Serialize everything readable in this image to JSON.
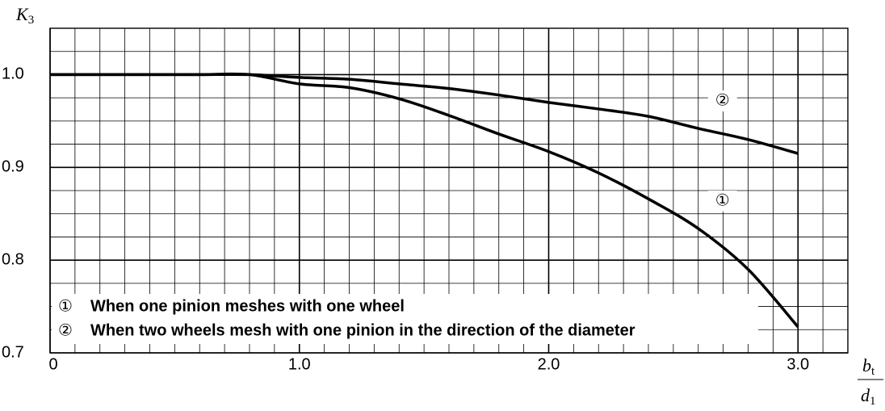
{
  "chart_data": {
    "type": "line",
    "y_label": {
      "main": "K",
      "sub": "3"
    },
    "x_label": {
      "num_main": "b",
      "num_sub": "t",
      "den_main": "d",
      "den_sub": "1"
    },
    "x": [
      0,
      0.2,
      0.4,
      0.6,
      0.8,
      1.0,
      1.2,
      1.4,
      1.6,
      1.8,
      2.0,
      2.2,
      2.4,
      2.6,
      2.8,
      3.0
    ],
    "series": [
      {
        "marker": "①",
        "name": "When one pinion meshes with one wheel",
        "color": "#000000",
        "values": [
          1.0,
          1.0,
          1.0,
          1.0,
          1.0,
          0.99,
          0.986,
          0.974,
          0.956,
          0.936,
          0.917,
          0.894,
          0.866,
          0.834,
          0.79,
          0.728
        ]
      },
      {
        "marker": "②",
        "name": "When two wheels mesh with one pinion in the direction of the diameter",
        "color": "#000000",
        "values": [
          1.0,
          1.0,
          1.0,
          1.0,
          1.0,
          0.997,
          0.995,
          0.99,
          0.985,
          0.978,
          0.97,
          0.963,
          0.955,
          0.942,
          0.93,
          0.915
        ]
      }
    ],
    "xlim": [
      0,
      3.2
    ],
    "ylim": [
      0.7,
      1.05
    ],
    "xticks": [
      0,
      {
        "value": 1,
        "label": "1.0"
      },
      {
        "value": 2,
        "label": "2.0"
      },
      {
        "value": 3,
        "label": "3.0"
      }
    ],
    "yticks": [
      0.7,
      0.8,
      0.9,
      {
        "value": 1,
        "label": "1.0"
      }
    ],
    "grid": true,
    "minor_divisions": {
      "x": 10,
      "y": 4
    },
    "legend": "lower left"
  }
}
